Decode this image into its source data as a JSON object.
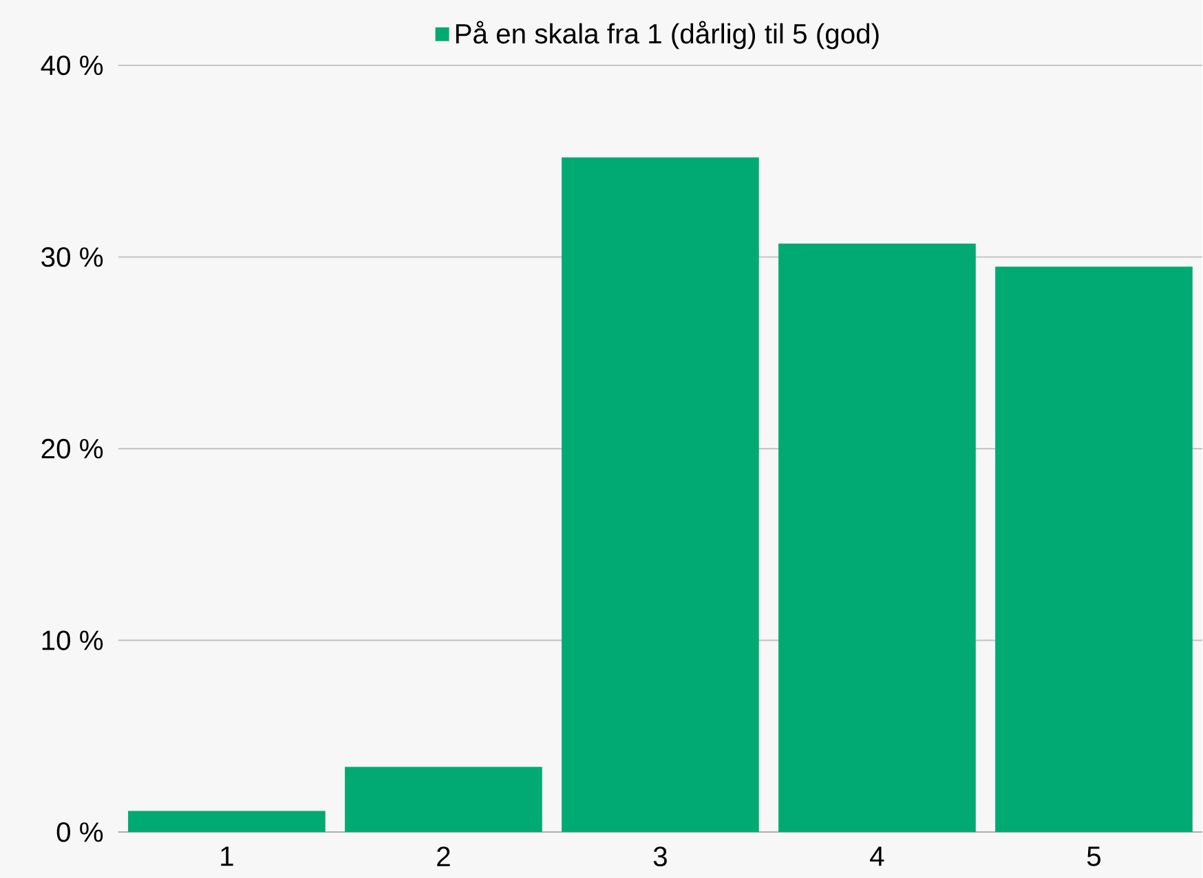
{
  "chart_data": {
    "type": "bar",
    "categories": [
      "1",
      "2",
      "3",
      "4",
      "5"
    ],
    "series": [
      {
        "name": "På en skala fra 1 (dårlig) til 5 (god)",
        "color": "#00aa72",
        "values": [
          1.1,
          3.4,
          35.2,
          30.7,
          29.5
        ]
      }
    ],
    "ylim": [
      0,
      40
    ],
    "yticks": [
      {
        "value": 0,
        "label": "0 %"
      },
      {
        "value": 10,
        "label": "10 %"
      },
      {
        "value": 20,
        "label": "20 %"
      },
      {
        "value": 30,
        "label": "30 %"
      },
      {
        "value": 40,
        "label": "40 %"
      }
    ],
    "grid": "y",
    "legend": "top"
  }
}
